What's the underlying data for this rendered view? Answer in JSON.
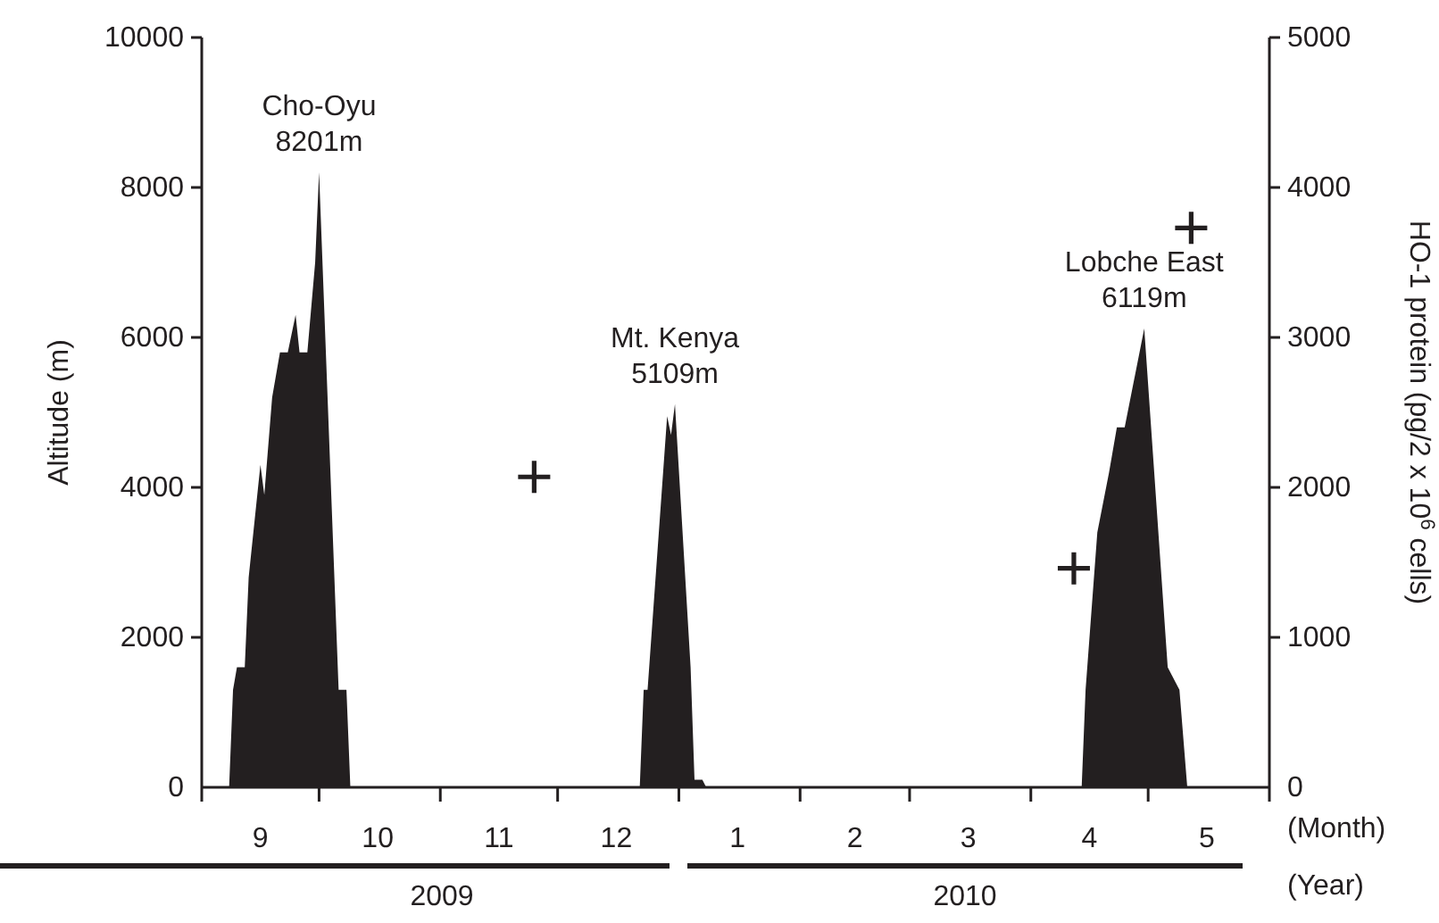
{
  "chart_data": {
    "type": "area",
    "ylabel": "Altitude (m)",
    "y2label": "HO-1 protein (pg/2 x 10$^{6}$ cells)",
    "xlabel": "(Month)",
    "xlim": [
      "2009-09-01",
      "2010-06-01"
    ],
    "xticks": [
      {
        "value": "2009-09-01",
        "label": null
      },
      {
        "value": "2009-09-16",
        "label": "9"
      },
      {
        "value": "2009-10-01",
        "label": null
      },
      {
        "value": "2009-10-16",
        "label": "10"
      },
      {
        "value": "2009-11-01",
        "label": null
      },
      {
        "value": "2009-11-16",
        "label": "11"
      },
      {
        "value": "2009-12-01",
        "label": null
      },
      {
        "value": "2009-12-16",
        "label": "12"
      },
      {
        "value": "2010-01-01",
        "label": null
      },
      {
        "value": "2010-01-16",
        "label": "1"
      },
      {
        "value": "2010-02-01",
        "label": null
      },
      {
        "value": "2010-02-15",
        "label": "2"
      },
      {
        "value": "2010-03-01",
        "label": null
      },
      {
        "value": "2010-03-16",
        "label": "3"
      },
      {
        "value": "2010-04-01",
        "label": null
      },
      {
        "value": "2010-04-16",
        "label": "4"
      },
      {
        "value": "2010-05-01",
        "label": null
      },
      {
        "value": "2010-05-16",
        "label": "5"
      },
      {
        "value": "2010-06-01",
        "label": null
      }
    ],
    "ylim": [
      0,
      10000
    ],
    "yticks": [
      0,
      2000,
      4000,
      6000,
      8000,
      10000
    ],
    "y2lim": [
      0,
      5000
    ],
    "y2ticks": [
      0,
      1000,
      2000,
      3000,
      4000,
      5000
    ],
    "series": [
      {
        "color": "#231f20",
        "x": [
          "2009-09-08",
          "2009-09-09",
          "2009-09-10",
          "2009-09-12",
          "2009-09-13",
          "2009-09-16",
          "2009-09-17",
          "2009-09-19",
          "2009-09-21",
          "2009-09-23",
          "2009-09-25",
          "2009-09-26",
          "2009-09-28",
          "2009-09-30",
          "2009-10-01",
          "2009-10-06",
          "2009-10-08",
          "2009-10-09",
          "2009-12-22",
          "2009-12-23",
          "2009-12-24",
          "2009-12-29",
          "2009-12-30",
          "2009-12-31",
          "2010-01-04",
          "2010-01-05",
          "2010-01-07",
          "2010-01-08",
          "2010-04-14",
          "2010-04-15",
          "2010-04-18",
          "2010-04-21",
          "2010-04-23",
          "2010-04-25",
          "2010-04-30",
          "2010-05-06",
          "2010-05-09",
          "2010-05-11"
        ],
        "values": [
          0,
          1300,
          1600,
          1600,
          2800,
          4300,
          3900,
          5200,
          5800,
          5800,
          6300,
          5800,
          5800,
          7000,
          8201,
          1300,
          1300,
          0,
          0,
          1300,
          1300,
          4950,
          4700,
          5109,
          1600,
          100,
          100,
          0,
          0,
          1300,
          3400,
          4200,
          4800,
          4800,
          6119,
          1600,
          1300,
          0
        ]
      },
      {
        "type": "scatter",
        "axis": "y2",
        "marker": "cross",
        "color": "#231f20",
        "x": [
          "2009-11-25",
          "2010-04-12",
          "2010-05-12"
        ],
        "values": [
          2070,
          1460,
          3730
        ]
      }
    ],
    "annotations": [
      {
        "text": "Cho-Oyu\n8201m",
        "x": "2009-10-01",
        "y": 8201
      },
      {
        "text": "Mt. Kenya\n5109m",
        "x": "2009-12-31",
        "y": 5109
      },
      {
        "text": "Lobche East\n6119m",
        "x": "2010-04-30",
        "y": 6119
      },
      "(Year)",
      "2009",
      "2010"
    ]
  }
}
